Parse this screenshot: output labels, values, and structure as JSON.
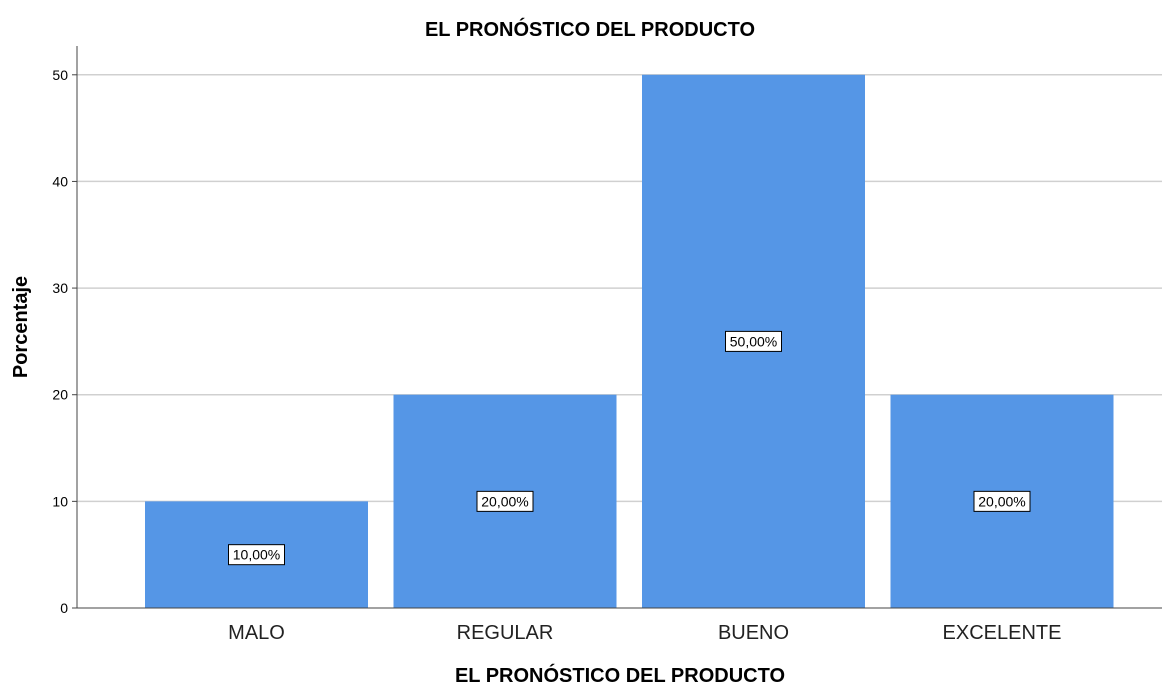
{
  "chart_data": {
    "type": "bar",
    "title": "EL PRONÓSTICO DEL PRODUCTO",
    "xlabel": "EL PRONÓSTICO DEL PRODUCTO",
    "ylabel": "Porcentaje",
    "categories": [
      "MALO",
      "REGULAR",
      "BUENO",
      "EXCELENTE"
    ],
    "values": [
      10,
      20,
      50,
      20
    ],
    "data_labels": [
      "10,00%",
      "20,00%",
      "50,00%",
      "20,00%"
    ],
    "ylim": [
      0,
      52.7
    ],
    "yticks": [
      0,
      10,
      20,
      30,
      40,
      50
    ],
    "grid": "horizontal",
    "bar_color": "#5596e6",
    "grid_color": "#d0d0d0"
  }
}
